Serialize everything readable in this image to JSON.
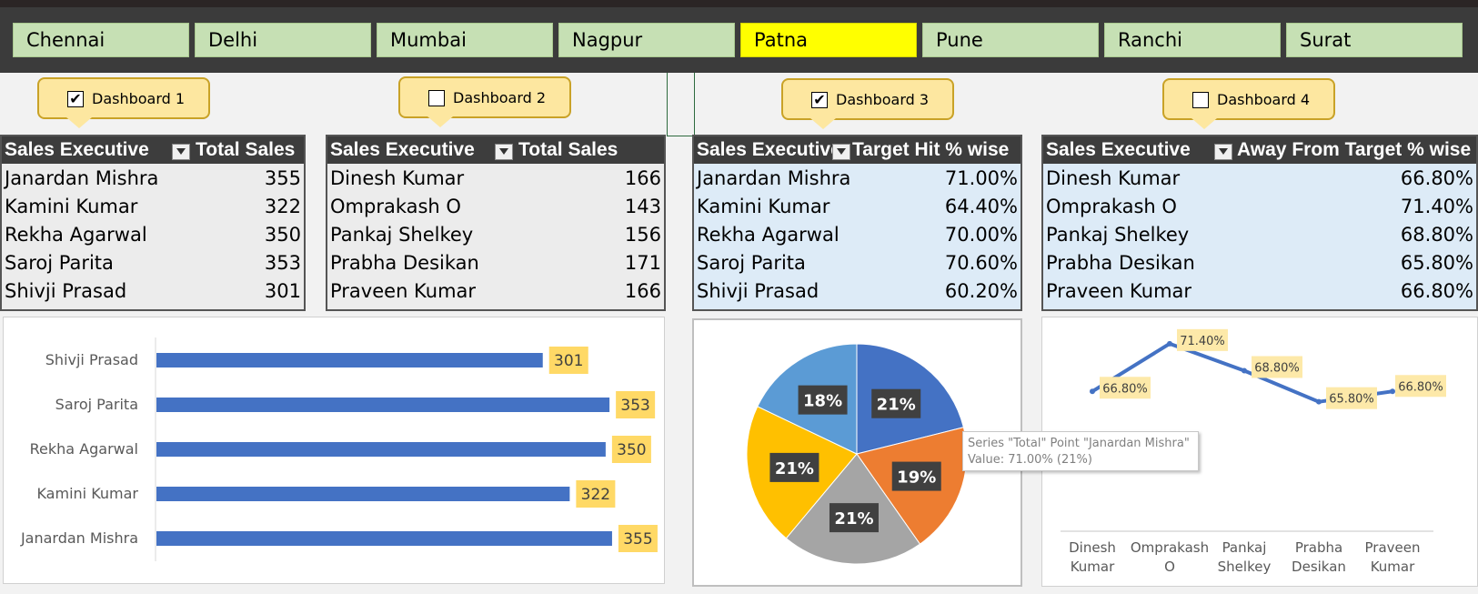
{
  "city_tabs": [
    "Chennai",
    "Delhi",
    "Mumbai",
    "Nagpur",
    "Patna",
    "Pune",
    "Ranchi",
    "Surat"
  ],
  "active_city": "Patna",
  "dashboards": [
    {
      "label": "Dashboard 1",
      "checked": true,
      "check_mark": "✔"
    },
    {
      "label": "Dashboard 2",
      "checked": false,
      "check_mark": ""
    },
    {
      "label": "Dashboard 3",
      "checked": true,
      "check_mark": "✔"
    },
    {
      "label": "Dashboard 4",
      "checked": false,
      "check_mark": ""
    }
  ],
  "tables": [
    {
      "h1": "Sales Executive",
      "h2": "Total Sales",
      "rows": [
        {
          "name": "Janardan Mishra",
          "value": "355"
        },
        {
          "name": "Kamini Kumar",
          "value": "322"
        },
        {
          "name": "Rekha Agarwal",
          "value": "350"
        },
        {
          "name": "Saroj Parita",
          "value": "353"
        },
        {
          "name": "Shivji Prasad",
          "value": "301"
        }
      ]
    },
    {
      "h1": "Sales Executive",
      "h2": "Total Sales",
      "rows": [
        {
          "name": "Dinesh Kumar",
          "value": "166"
        },
        {
          "name": "Omprakash O",
          "value": "143"
        },
        {
          "name": "Pankaj Shelkey",
          "value": "156"
        },
        {
          "name": "Prabha Desikan",
          "value": "171"
        },
        {
          "name": "Praveen Kumar",
          "value": "166"
        }
      ]
    },
    {
      "h1": "Sales Executive",
      "h2": "Target Hit % wise",
      "rows": [
        {
          "name": "Janardan Mishra",
          "value": "71.00%"
        },
        {
          "name": "Kamini Kumar",
          "value": "64.40%"
        },
        {
          "name": "Rekha Agarwal",
          "value": "70.00%"
        },
        {
          "name": "Saroj Parita",
          "value": "70.60%"
        },
        {
          "name": "Shivji Prasad",
          "value": "60.20%"
        }
      ]
    },
    {
      "h1": "Sales Executive",
      "h2": "Away From Target % wise",
      "rows": [
        {
          "name": "Dinesh Kumar",
          "value": "66.80%"
        },
        {
          "name": "Omprakash O",
          "value": "71.40%"
        },
        {
          "name": "Pankaj Shelkey",
          "value": "68.80%"
        },
        {
          "name": "Prabha Desikan",
          "value": "65.80%"
        },
        {
          "name": "Praveen Kumar",
          "value": "66.80%"
        }
      ]
    }
  ],
  "chart_data": [
    {
      "type": "bar",
      "categories": [
        "Shivji Prasad",
        "Saroj Parita",
        "Rekha Agarwal",
        "Kamini Kumar",
        "Janardan Mishra"
      ],
      "values": [
        301,
        353,
        350,
        322,
        355
      ],
      "labels": [
        "301",
        "353",
        "350",
        "322",
        "355"
      ],
      "xlim": [
        0,
        360
      ],
      "color": "#4472c4",
      "label_bg": "#ffd966"
    },
    {
      "type": "pie",
      "slices": [
        {
          "category": "Janardan Mishra",
          "value": 71.0,
          "label": "21%",
          "color": "#4472c4"
        },
        {
          "category": "Kamini Kumar",
          "value": 64.4,
          "label": "19%",
          "color": "#ed7d31"
        },
        {
          "category": "Rekha Agarwal",
          "value": 70.0,
          "label": "21%",
          "color": "#a5a5a5"
        },
        {
          "category": "Saroj Parita",
          "value": 70.6,
          "label": "21%",
          "color": "#ffc000"
        },
        {
          "category": "Shivji Prasad",
          "value": 60.2,
          "label": "18%",
          "color": "#5b9bd5"
        }
      ],
      "tooltip": {
        "line1": "Series \"Total\" Point \"Janardan Mishra\"",
        "line2": "Value: 71.00% (21%)"
      }
    },
    {
      "type": "line",
      "categories": [
        [
          "Dinesh",
          "Kumar"
        ],
        [
          "Omprakash",
          "O"
        ],
        [
          "Pankaj",
          "Shelkey"
        ],
        [
          "Prabha",
          "Desikan"
        ],
        [
          "Praveen",
          "Kumar"
        ]
      ],
      "values": [
        66.8,
        71.4,
        68.8,
        65.8,
        66.8
      ],
      "labels": [
        "66.80%",
        "71.40%",
        "68.80%",
        "65.80%",
        "66.80%"
      ],
      "ylim": [
        62,
        72
      ],
      "color": "#4472c4",
      "label_bg": "#fde9a9"
    }
  ]
}
